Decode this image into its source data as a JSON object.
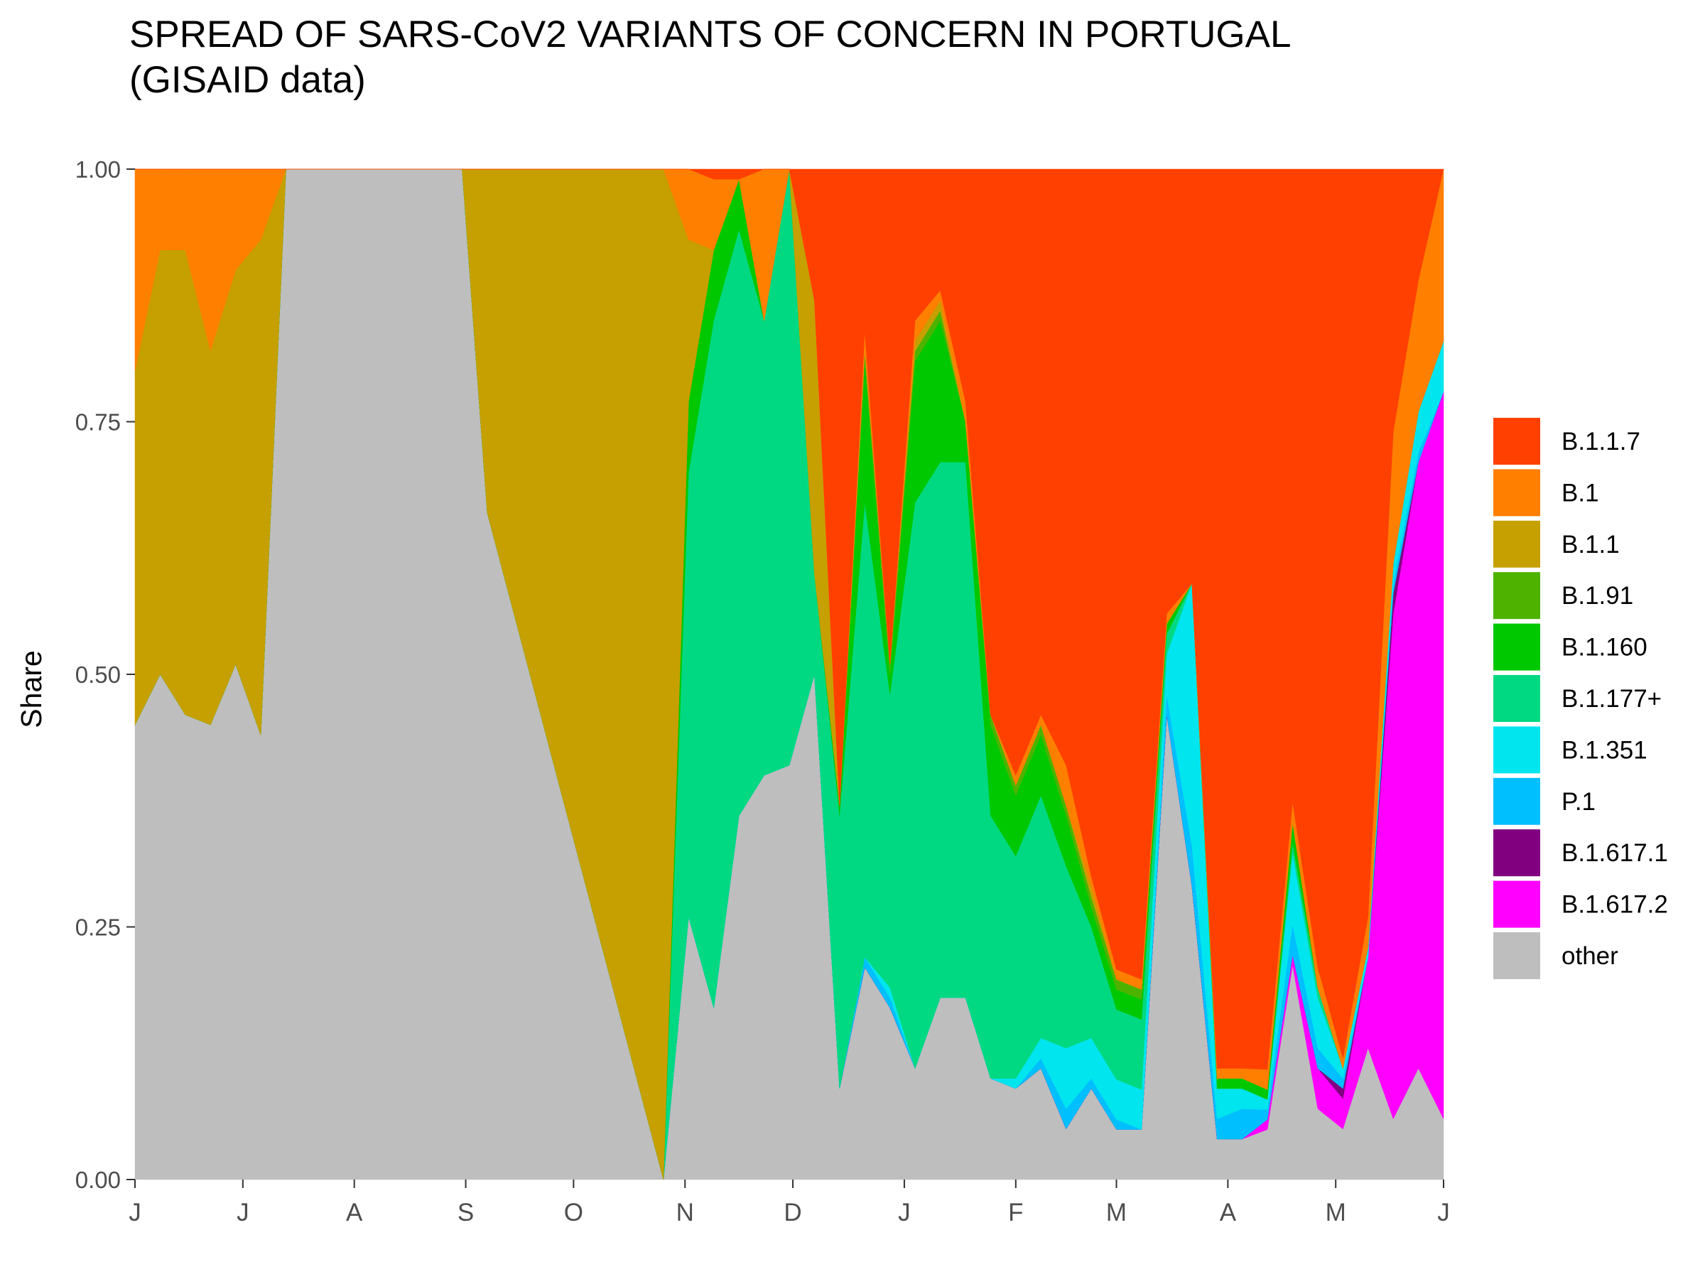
{
  "chart_data": {
    "type": "area",
    "stacked": true,
    "normalized": true,
    "title": "SPREAD OF SARS-CoV2 VARIANTS OF CONCERN IN PORTUGAL",
    "subtitle": "(GISAID data)",
    "ylabel": "Share",
    "xlabel": "",
    "ylim": [
      0,
      1
    ],
    "yticks": [
      "0.00",
      "0.25",
      "0.50",
      "0.75",
      "1.00"
    ],
    "xticks": [
      "J",
      "J",
      "A",
      "S",
      "O",
      "N",
      "D",
      "J",
      "F",
      "M",
      "A",
      "M",
      "J"
    ],
    "legend_position": "right",
    "grid": false,
    "x": [
      "2020-06-01",
      "2020-06-08",
      "2020-06-15",
      "2020-06-22",
      "2020-06-29",
      "2020-07-06",
      "2020-07-13",
      "2020-08-31",
      "2020-09-07",
      "2020-10-26",
      "2020-11-02",
      "2020-11-09",
      "2020-11-16",
      "2020-11-23",
      "2020-11-30",
      "2020-12-07",
      "2020-12-14",
      "2020-12-21",
      "2020-12-28",
      "2021-01-04",
      "2021-01-11",
      "2021-01-18",
      "2021-01-25",
      "2021-02-01",
      "2021-02-08",
      "2021-02-15",
      "2021-02-22",
      "2021-03-01",
      "2021-03-08",
      "2021-03-15",
      "2021-03-22",
      "2021-03-29",
      "2021-04-05",
      "2021-04-12",
      "2021-04-19",
      "2021-04-26",
      "2021-05-03",
      "2021-05-10",
      "2021-05-17",
      "2021-05-24",
      "2021-05-31"
    ],
    "series": [
      {
        "name": "other",
        "color": "#bebebe",
        "values": [
          0.45,
          0.5,
          0.46,
          0.45,
          0.51,
          0.44,
          1.0,
          1.0,
          0.66,
          0.0,
          0.26,
          0.17,
          0.36,
          0.4,
          0.41,
          0.5,
          0.09,
          0.21,
          0.17,
          0.11,
          0.18,
          0.18,
          0.1,
          0.09,
          0.11,
          0.05,
          0.09,
          0.05,
          0.05,
          0.46,
          0.29,
          0.04,
          0.04,
          0.05,
          0.21,
          0.07,
          0.05,
          0.13,
          0.06,
          0.11,
          0.06
        ]
      },
      {
        "name": "B.1.617.2",
        "color": "#ff00ff",
        "values": [
          0,
          0,
          0,
          0,
          0,
          0,
          0,
          0,
          0,
          0,
          0,
          0,
          0,
          0,
          0,
          0,
          0,
          0,
          0,
          0,
          0,
          0,
          0,
          0,
          0,
          0,
          0,
          0,
          0,
          0,
          0,
          0,
          0,
          0.01,
          0.01,
          0.04,
          0.03,
          0.09,
          0.5,
          0.6,
          0.72
        ]
      },
      {
        "name": "B.1.617.1",
        "color": "#800080",
        "values": [
          0,
          0,
          0,
          0,
          0,
          0,
          0,
          0,
          0,
          0,
          0,
          0,
          0,
          0,
          0,
          0,
          0,
          0,
          0,
          0,
          0,
          0,
          0,
          0,
          0,
          0,
          0,
          0,
          0,
          0,
          0,
          0,
          0,
          0,
          0,
          0,
          0.01,
          0,
          0.02,
          0,
          0
        ]
      },
      {
        "name": "P.1",
        "color": "#00bfff",
        "values": [
          0,
          0,
          0,
          0,
          0,
          0,
          0,
          0,
          0,
          0,
          0,
          0,
          0,
          0,
          0,
          0,
          0,
          0.01,
          0.01,
          0,
          0,
          0,
          0,
          0,
          0.01,
          0.02,
          0.01,
          0.01,
          0,
          0.02,
          0.04,
          0.02,
          0.03,
          0.01,
          0.03,
          0.02,
          0.01,
          0,
          0.01,
          0.01,
          0
        ]
      },
      {
        "name": "B.1.351",
        "color": "#00e5ee",
        "values": [
          0,
          0,
          0,
          0,
          0,
          0,
          0,
          0,
          0,
          0,
          0,
          0,
          0,
          0,
          0,
          0,
          0,
          0,
          0.01,
          0,
          0,
          0,
          0,
          0.01,
          0.02,
          0.06,
          0.04,
          0.04,
          0.04,
          0.04,
          0.26,
          0.03,
          0.02,
          0.01,
          0.07,
          0.05,
          0.01,
          0.01,
          0.02,
          0.04,
          0.05
        ]
      },
      {
        "name": "B.1.177+",
        "color": "#00d982",
        "values": [
          0,
          0,
          0,
          0,
          0,
          0,
          0,
          0,
          0,
          0,
          0.44,
          0.68,
          0.58,
          0.45,
          0.59,
          0.1,
          0.27,
          0.45,
          0.29,
          0.56,
          0.53,
          0.53,
          0.26,
          0.22,
          0.24,
          0.18,
          0.11,
          0.07,
          0.07,
          0.02,
          0,
          0,
          0,
          0,
          0.01,
          0.01,
          0,
          0,
          0,
          0,
          0
        ]
      },
      {
        "name": "B.1.160",
        "color": "#00c800",
        "values": [
          0,
          0,
          0,
          0,
          0,
          0,
          0,
          0,
          0,
          0,
          0.07,
          0.07,
          0.05,
          0,
          0,
          0,
          0.01,
          0.14,
          0.02,
          0.14,
          0.14,
          0.04,
          0.09,
          0.06,
          0.06,
          0.05,
          0.02,
          0.02,
          0.02,
          0.01,
          0,
          0.01,
          0.01,
          0.01,
          0.02,
          0,
          0,
          0,
          0,
          0,
          0
        ]
      },
      {
        "name": "B.1.91",
        "color": "#4db300",
        "values": [
          0,
          0,
          0,
          0,
          0,
          0,
          0,
          0,
          0,
          0,
          0,
          0,
          0,
          0,
          0,
          0,
          0,
          0.01,
          0.01,
          0.01,
          0.01,
          0,
          0.01,
          0.01,
          0.01,
          0.01,
          0.01,
          0.01,
          0.01,
          0,
          0,
          0,
          0,
          0,
          0,
          0,
          0,
          0,
          0,
          0,
          0
        ]
      },
      {
        "name": "B.1.1",
        "color": "#c6a000",
        "values": [
          0.35,
          0.42,
          0.46,
          0.37,
          0.39,
          0.49,
          0,
          0,
          0.34,
          1.0,
          0.16,
          0,
          0,
          0,
          0,
          0.27,
          0,
          0,
          0,
          0.01,
          0.01,
          0,
          0,
          0,
          0,
          0,
          0.01,
          0,
          0,
          0,
          0,
          0,
          0,
          0,
          0,
          0,
          0,
          0,
          0,
          0,
          0
        ]
      },
      {
        "name": "B.1",
        "color": "#ff7f00",
        "values": [
          0.2,
          0.08,
          0.08,
          0.18,
          0.1,
          0.07,
          0,
          0,
          0,
          0,
          0.07,
          0.07,
          0,
          0.15,
          0,
          0,
          0,
          0.02,
          0,
          0.02,
          0.01,
          0.02,
          0,
          0.01,
          0.01,
          0.04,
          0.01,
          0.01,
          0.01,
          0.01,
          0,
          0.01,
          0.01,
          0.02,
          0.02,
          0.02,
          0.01,
          0.03,
          0.13,
          0.13,
          0.17
        ]
      },
      {
        "name": "B.1.1.7",
        "color": "#ff4000",
        "values": [
          0,
          0,
          0,
          0,
          0,
          0,
          0,
          0,
          0,
          0,
          0,
          0.01,
          0.01,
          0,
          0,
          0.13,
          0.63,
          0.16,
          0.49,
          0.15,
          0.12,
          0.23,
          0.54,
          0.6,
          0.54,
          0.59,
          0.7,
          0.8,
          0.81,
          0.44,
          0.41,
          0.89,
          0.89,
          0.9,
          0.62,
          0.79,
          0.88,
          0.74,
          0.26,
          0.11,
          0
        ]
      }
    ],
    "legend_order": [
      "B.1.1.7",
      "B.1",
      "B.1.1",
      "B.1.91",
      "B.1.160",
      "B.1.177+",
      "B.1.351",
      "P.1",
      "B.1.617.1",
      "B.1.617.2",
      "other"
    ]
  }
}
